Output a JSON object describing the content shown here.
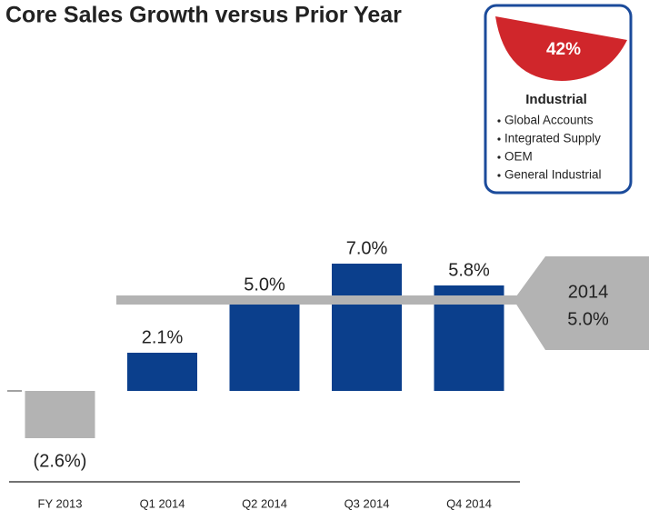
{
  "chart_data": {
    "type": "bar",
    "title": "Core Sales Growth versus Prior Year",
    "categories": [
      "FY 2013",
      "Q1 2014",
      "Q2 2014",
      "Q3 2014",
      "Q4 2014"
    ],
    "values": [
      -2.6,
      2.1,
      5.0,
      7.0,
      5.8
    ],
    "value_labels": [
      "(2.6%)",
      "2.1%",
      "5.0%",
      "7.0%",
      "5.8%"
    ],
    "colors": [
      "#b3b3b3",
      "#0b3f8c",
      "#0b3f8c",
      "#0b3f8c",
      "#0b3f8c"
    ],
    "reference_line": {
      "label": "2014",
      "value": 5.0,
      "value_label": "5.0%",
      "color": "#b3b3b3"
    },
    "inset": {
      "value": 42,
      "value_label": "42%",
      "color": "#d0262b",
      "title": "Industrial",
      "items": [
        "Global Accounts",
        "Integrated Supply",
        "OEM",
        "General Industrial"
      ]
    }
  }
}
